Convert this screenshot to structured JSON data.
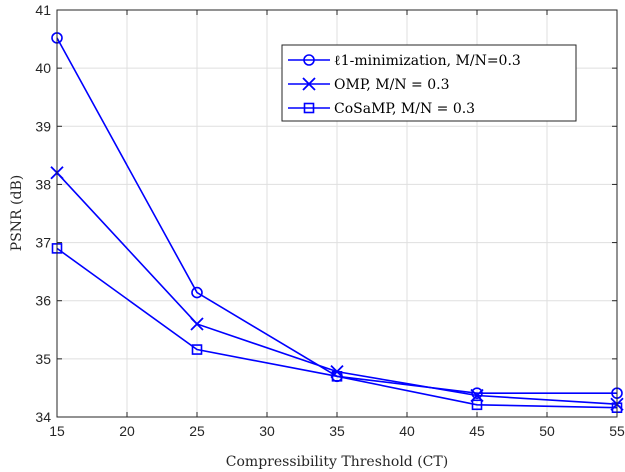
{
  "chart_data": {
    "type": "line",
    "xlabel": "Compressibility Threshold (CT)",
    "ylabel": "PSNR (dB)",
    "xlim": [
      15,
      55
    ],
    "ylim": [
      34,
      41
    ],
    "xticks": [
      15,
      20,
      25,
      30,
      35,
      40,
      45,
      50,
      55
    ],
    "yticks": [
      34,
      35,
      36,
      37,
      38,
      39,
      40,
      41
    ],
    "grid": true,
    "legend_position": "top-right",
    "color": "#0000ff",
    "x": [
      15,
      25,
      35,
      45,
      55
    ],
    "series": [
      {
        "name": "ℓ1-minimization, M/N=0.3",
        "marker": "circle",
        "values": [
          40.52,
          36.14,
          34.7,
          34.41,
          34.41
        ]
      },
      {
        "name": "OMP, M/N = 0.3",
        "marker": "x",
        "values": [
          38.2,
          35.6,
          34.78,
          34.37,
          34.22
        ]
      },
      {
        "name": "CoSaMP, M/N = 0.3",
        "marker": "square",
        "values": [
          36.9,
          35.16,
          34.7,
          34.21,
          34.16
        ]
      }
    ]
  }
}
